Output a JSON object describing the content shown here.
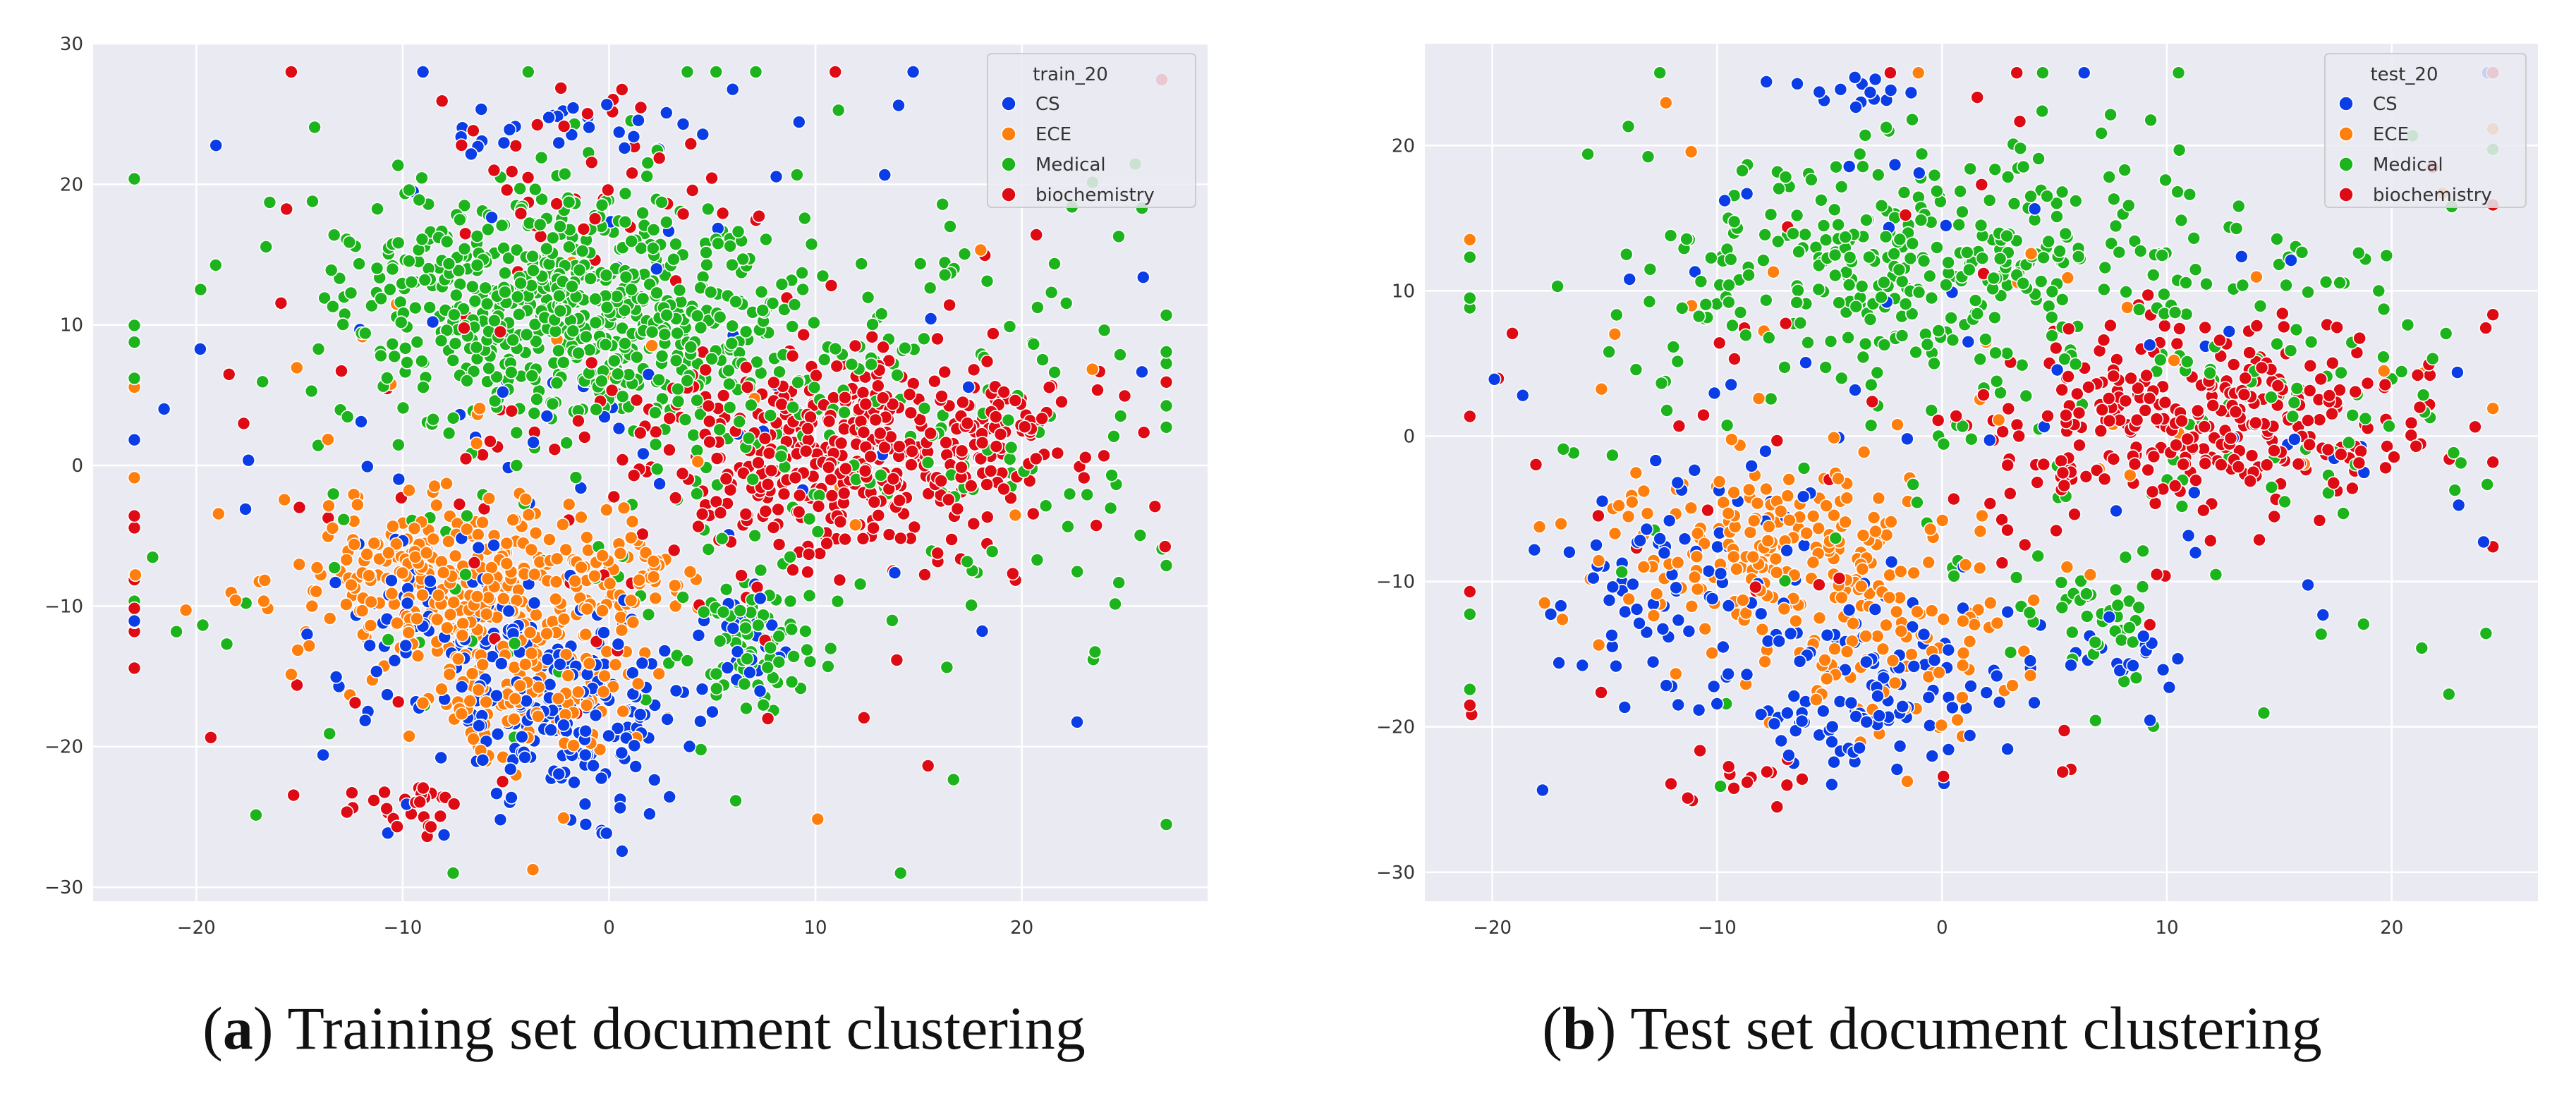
{
  "palette": {
    "CS": "#0a3de6",
    "ECE": "#ff7f0e",
    "Medical": "#1db31d",
    "biochemistry": "#de0a14"
  },
  "chart_data": [
    {
      "type": "scatter",
      "legend_title": "train_20",
      "legend_entries": [
        "CS",
        "ECE",
        "Medical",
        "biochemistry"
      ],
      "xlim": [
        -25,
        29
      ],
      "ylim": [
        -31,
        30
      ],
      "xticks": [
        -20,
        -10,
        0,
        10,
        20
      ],
      "yticks": [
        -30,
        -20,
        -10,
        0,
        10,
        20,
        30
      ],
      "grid": true,
      "legend_position": "top-right",
      "series": [
        {
          "name": "CS",
          "clusters": [
            {
              "center": [
                -2,
                -18
              ],
              "spread": [
                3,
                3
              ],
              "n": 180
            },
            {
              "center": [
                -8,
                -12
              ],
              "spread": [
                3,
                3
              ],
              "n": 90
            },
            {
              "center": [
                -2,
                24
              ],
              "spread": [
                3,
                1
              ],
              "n": 25
            },
            {
              "center": [
                7,
                -12
              ],
              "spread": [
                1.5,
                2
              ],
              "n": 25
            },
            {
              "center": [
                0,
                5
              ],
              "spread": [
                12,
                12
              ],
              "n": 70
            }
          ]
        },
        {
          "name": "ECE",
          "clusters": [
            {
              "center": [
                -8,
                -8
              ],
              "spread": [
                4,
                3
              ],
              "n": 260
            },
            {
              "center": [
                -3,
                -15
              ],
              "spread": [
                3,
                3
              ],
              "n": 140
            },
            {
              "center": [
                0,
                -8
              ],
              "spread": [
                2,
                1.5
              ],
              "n": 60
            },
            {
              "center": [
                0,
                0
              ],
              "spread": [
                12,
                12
              ],
              "n": 40
            }
          ]
        },
        {
          "name": "Medical",
          "clusters": [
            {
              "center": [
                -3,
                12
              ],
              "spread": [
                5,
                4
              ],
              "n": 520
            },
            {
              "center": [
                4,
                8
              ],
              "spread": [
                4,
                4
              ],
              "n": 150
            },
            {
              "center": [
                7,
                -13
              ],
              "spread": [
                1.5,
                2
              ],
              "n": 70
            },
            {
              "center": [
                15,
                5
              ],
              "spread": [
                6,
                7
              ],
              "n": 120
            },
            {
              "center": [
                0,
                0
              ],
              "spread": [
                13,
                12
              ],
              "n": 160
            }
          ]
        },
        {
          "name": "biochemistry",
          "clusters": [
            {
              "center": [
                12,
                1
              ],
              "spread": [
                5,
                3.5
              ],
              "n": 450
            },
            {
              "center": [
                -10,
                -24
              ],
              "spread": [
                2,
                1
              ],
              "n": 30
            },
            {
              "center": [
                -2,
                20
              ],
              "spread": [
                3,
                3
              ],
              "n": 40
            },
            {
              "center": [
                0,
                0
              ],
              "spread": [
                13,
                12
              ],
              "n": 90
            }
          ]
        }
      ]
    },
    {
      "type": "scatter",
      "legend_title": "test_20",
      "legend_entries": [
        "CS",
        "ECE",
        "Medical",
        "biochemistry"
      ],
      "xlim": [
        -23,
        26.5
      ],
      "ylim": [
        -32,
        27
      ],
      "xticks": [
        -20,
        -10,
        0,
        10,
        20
      ],
      "yticks": [
        -30,
        -20,
        -10,
        0,
        10,
        20
      ],
      "grid": true,
      "legend_position": "top-right",
      "series": [
        {
          "name": "CS",
          "clusters": [
            {
              "center": [
                -3,
                -17
              ],
              "spread": [
                3,
                3
              ],
              "n": 130
            },
            {
              "center": [
                -12,
                -10
              ],
              "spread": [
                3,
                4
              ],
              "n": 70
            },
            {
              "center": [
                -4,
                24
              ],
              "spread": [
                1.5,
                1
              ],
              "n": 15
            },
            {
              "center": [
                8,
                -15
              ],
              "spread": [
                1.5,
                1.5
              ],
              "n": 20
            },
            {
              "center": [
                0,
                5
              ],
              "spread": [
                12,
                12
              ],
              "n": 60
            }
          ]
        },
        {
          "name": "ECE",
          "clusters": [
            {
              "center": [
                -7,
                -8
              ],
              "spread": [
                4,
                3
              ],
              "n": 200
            },
            {
              "center": [
                -2,
                -15
              ],
              "spread": [
                3,
                3
              ],
              "n": 80
            },
            {
              "center": [
                0,
                0
              ],
              "spread": [
                12,
                12
              ],
              "n": 40
            }
          ]
        },
        {
          "name": "Medical",
          "clusters": [
            {
              "center": [
                -1,
                12
              ],
              "spread": [
                6,
                4
              ],
              "n": 320
            },
            {
              "center": [
                14,
                5
              ],
              "spread": [
                5,
                6
              ],
              "n": 80
            },
            {
              "center": [
                7,
                -13
              ],
              "spread": [
                1.5,
                2
              ],
              "n": 30
            },
            {
              "center": [
                0,
                0
              ],
              "spread": [
                12,
                12
              ],
              "n": 100
            }
          ]
        },
        {
          "name": "biochemistry",
          "clusters": [
            {
              "center": [
                12,
                1
              ],
              "spread": [
                5,
                3
              ],
              "n": 300
            },
            {
              "center": [
                -9,
                -24
              ],
              "spread": [
                2,
                1
              ],
              "n": 15
            },
            {
              "center": [
                0,
                0
              ],
              "spread": [
                13,
                12
              ],
              "n": 70
            }
          ]
        }
      ]
    }
  ],
  "captions": [
    {
      "label": "a",
      "text": "Training set document clustering"
    },
    {
      "label": "b",
      "text": "Test set document clustering"
    }
  ]
}
